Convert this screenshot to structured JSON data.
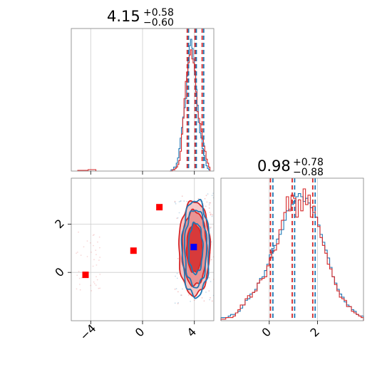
{
  "colors": {
    "blue": "#1f77b4",
    "red": "#d62728",
    "grid": "#cccccc",
    "frame": "#808080"
  },
  "titles": {
    "p1": {
      "main": "4.15",
      "plus": "+0.58",
      "minus": "−0.60"
    },
    "p2": {
      "main": "0.98",
      "plus": "+0.78",
      "minus": "−0.88"
    }
  },
  "chart_data": [
    {
      "type": "histogram",
      "panel": "top-left",
      "title": "4.15^{+0.58}_{-0.60}",
      "xlim": [
        -5.5,
        5.5
      ],
      "grid": true,
      "quantile_lines": {
        "blue": [
          3.55,
          4.15,
          4.72
        ],
        "red": [
          3.45,
          4.05,
          4.6
        ]
      },
      "series": [
        {
          "color": "blue",
          "x_start": 2.1,
          "bin_width": 0.1,
          "values": [
            0,
            1,
            1,
            3,
            3,
            6,
            10,
            17,
            25,
            33,
            41,
            48,
            55,
            72,
            85,
            95,
            100,
            93,
            85,
            73,
            62,
            50,
            37,
            29,
            25,
            17,
            12,
            8,
            4,
            2,
            1
          ]
        },
        {
          "color": "red",
          "x_start": 2.1,
          "bin_width": 0.1,
          "values": [
            0,
            0,
            1,
            1,
            2,
            3,
            5,
            8,
            15,
            28,
            40,
            55,
            68,
            75,
            82,
            88,
            92,
            85,
            82,
            76,
            60,
            45,
            40,
            36,
            30,
            25,
            19,
            15,
            9,
            6,
            3
          ]
        }
      ]
    },
    {
      "type": "histogram",
      "panel": "bottom-right",
      "title": "0.98^{+0.78}_{-0.88}",
      "xlim": [
        -2.0,
        3.9
      ],
      "xticks": [
        0,
        2
      ],
      "grid": true,
      "quantile_lines": {
        "blue": [
          0.15,
          1.05,
          1.9
        ],
        "red": [
          0.05,
          0.95,
          1.8
        ]
      },
      "series": [
        {
          "color": "blue",
          "x_start": -2.0,
          "bin_width": 0.1,
          "values": [
            2,
            2,
            2,
            3,
            4,
            4,
            5,
            6,
            8,
            10,
            13,
            14,
            17,
            18,
            20,
            24,
            27,
            28,
            32,
            36,
            42,
            46,
            48,
            52,
            55,
            58,
            64,
            70,
            71,
            74,
            76,
            79,
            81,
            79,
            76,
            78,
            75,
            72,
            69,
            66,
            61,
            55,
            50,
            45,
            40,
            34,
            28,
            24,
            20,
            17,
            15,
            12,
            10,
            9,
            7,
            6,
            4,
            3,
            3
          ]
        },
        {
          "color": "red",
          "x_start": -2.0,
          "bin_width": 0.1,
          "values": [
            1,
            1,
            2,
            2,
            2,
            3,
            5,
            7,
            10,
            10,
            14,
            16,
            15,
            18,
            19,
            24,
            26,
            27,
            28,
            35,
            40,
            44,
            45,
            49,
            58,
            64,
            69,
            79,
            70,
            80,
            78,
            66,
            77,
            70,
            84,
            74,
            80,
            66,
            73,
            66,
            60,
            53,
            48,
            43,
            36,
            33,
            28,
            23,
            19,
            15,
            14,
            13,
            9,
            9,
            6,
            5,
            4,
            3,
            2
          ]
        }
      ]
    },
    {
      "type": "contour",
      "panel": "bottom-left",
      "xlim": [
        -5.5,
        5.5
      ],
      "ylim": [
        -2.0,
        3.9
      ],
      "xticks": [
        -4,
        0,
        4
      ],
      "yticks": [
        0,
        2
      ],
      "grid": true,
      "markers": [
        {
          "color": "red",
          "shape": "square",
          "x": -4.4,
          "y": -0.1
        },
        {
          "color": "red",
          "shape": "square",
          "x": -0.7,
          "y": 0.9
        },
        {
          "color": "red",
          "shape": "square",
          "x": 1.3,
          "y": 2.7
        },
        {
          "color": "blue",
          "shape": "square",
          "x": 3.95,
          "y": 1.05
        }
      ],
      "contours": {
        "blue": {
          "center": [
            4.1,
            1.0
          ],
          "half_widths": [
            [
              0.55,
              1.05
            ],
            [
              0.85,
              1.6
            ],
            [
              1.05,
              2.0
            ]
          ]
        },
        "red": {
          "center": [
            4.0,
            1.0
          ],
          "half_widths": [
            [
              0.6,
              1.0
            ],
            [
              0.95,
              1.55
            ],
            [
              1.2,
              1.95
            ]
          ]
        }
      }
    }
  ]
}
